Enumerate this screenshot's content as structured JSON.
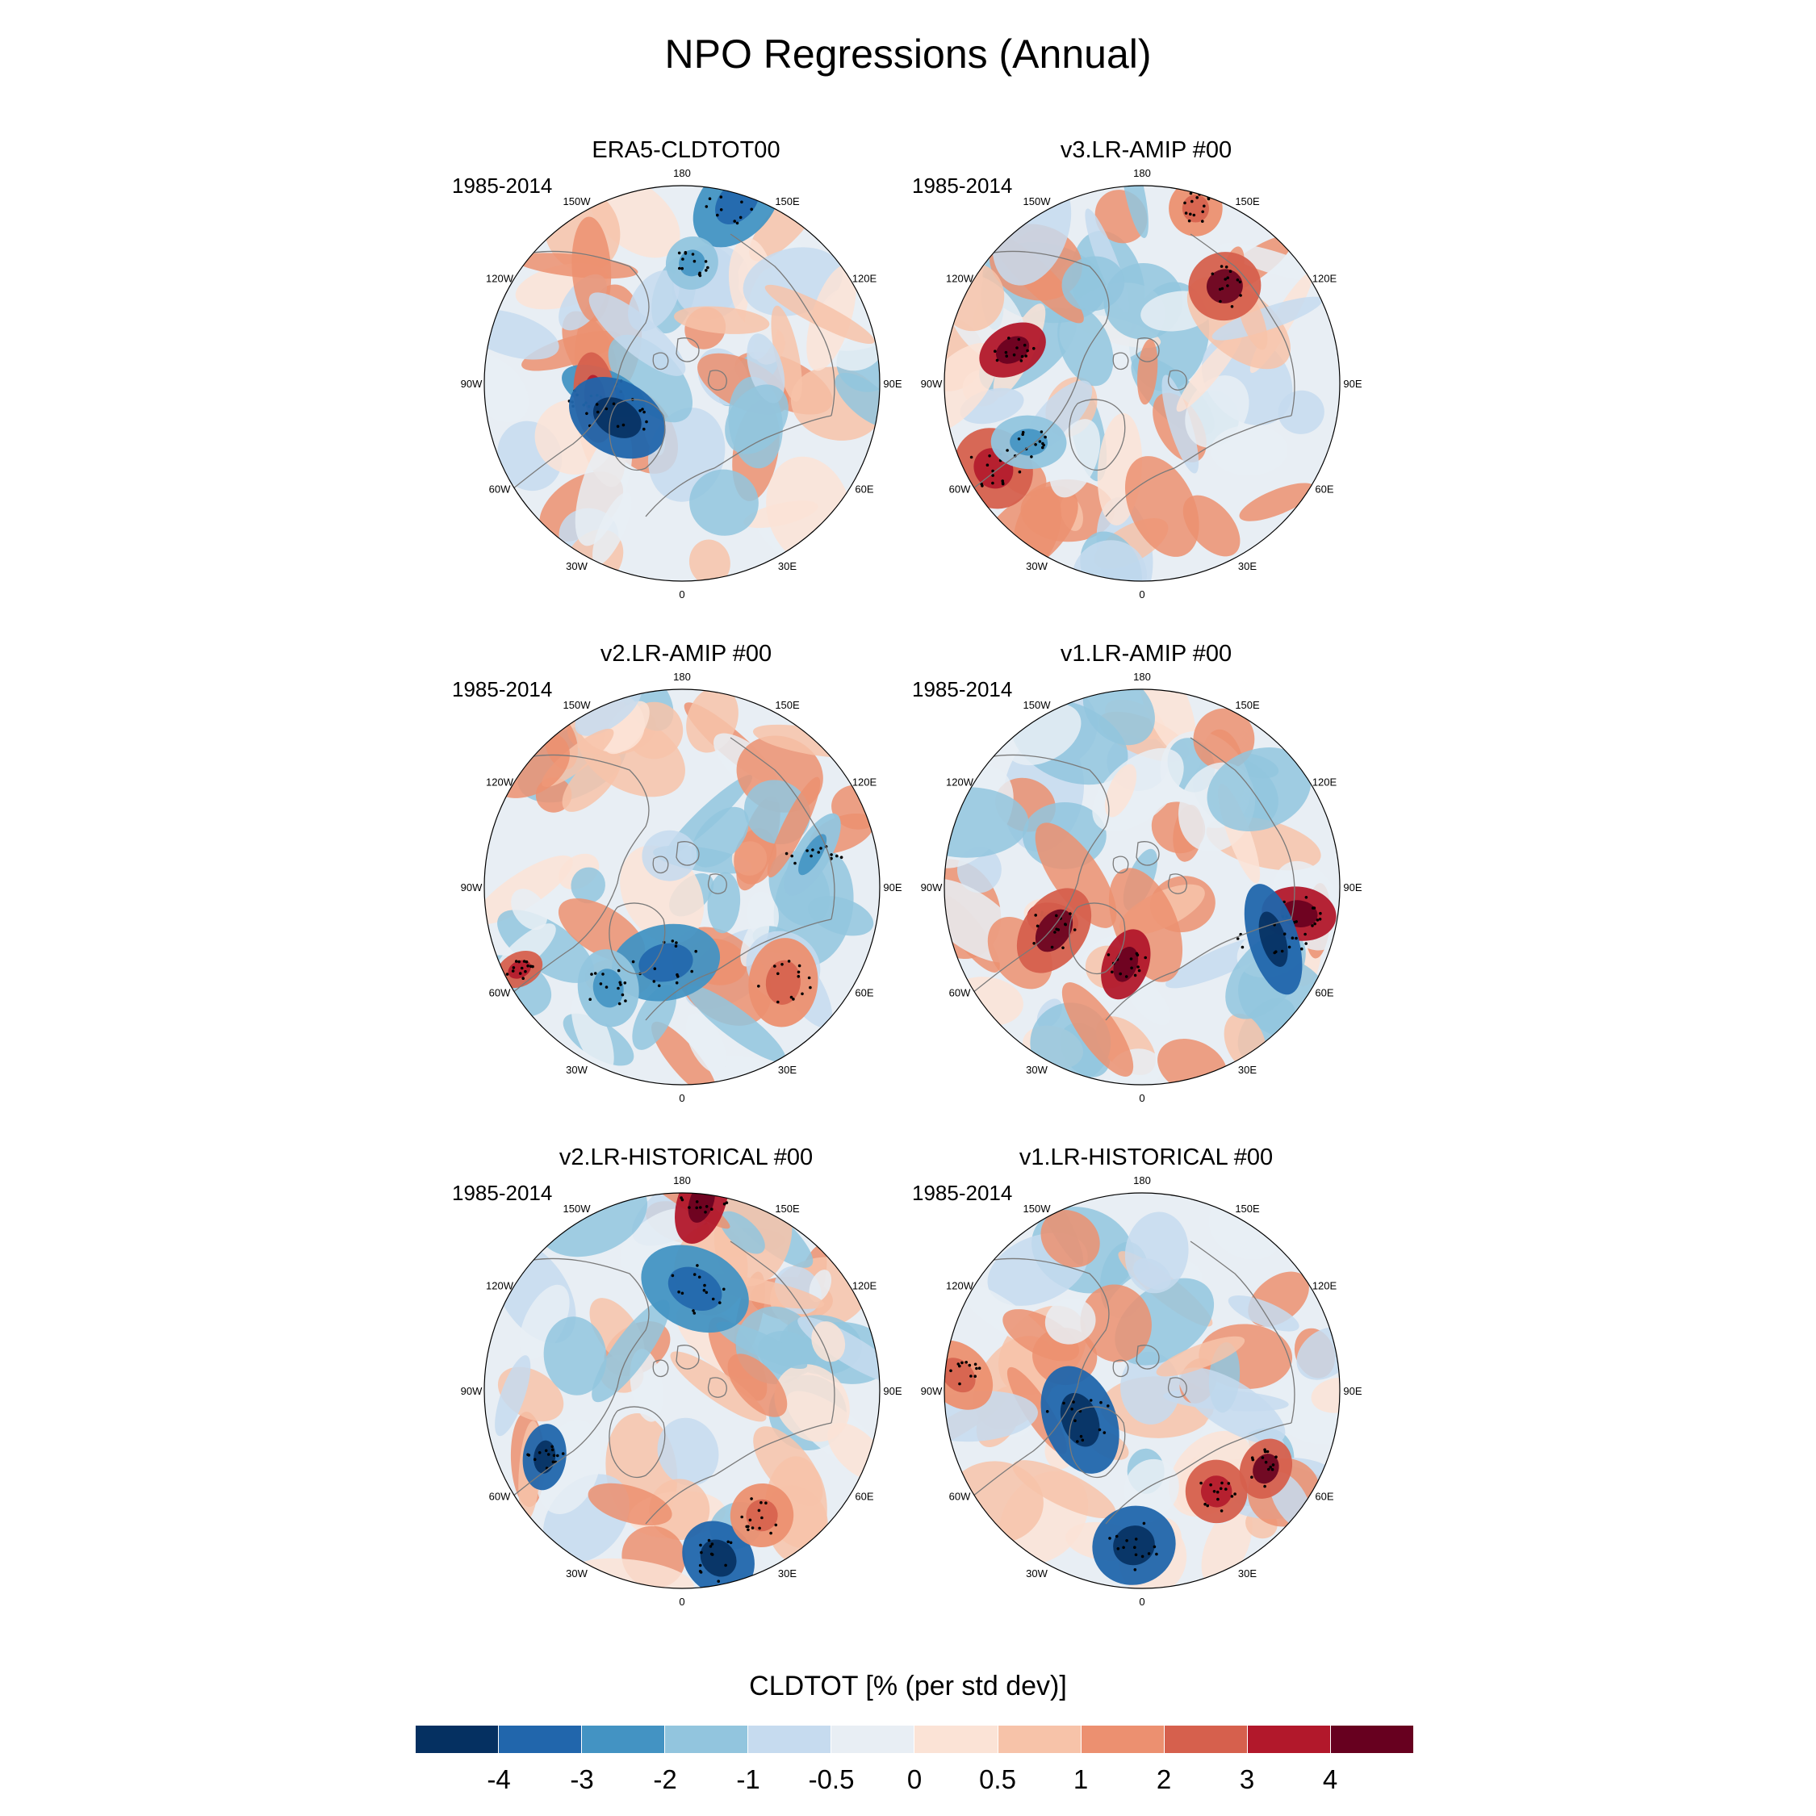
{
  "title": "NPO Regressions (Annual)",
  "panels": [
    {
      "title": "ERA5-CLDTOT00",
      "period": "1985-2014"
    },
    {
      "title": "v3.LR-AMIP  #00",
      "period": "1985-2014"
    },
    {
      "title": "v2.LR-AMIP  #00",
      "period": "1985-2014"
    },
    {
      "title": "v1.LR-AMIP  #00",
      "period": "1985-2014"
    },
    {
      "title": "v2.LR-HISTORICAL  #00",
      "period": "1985-2014"
    },
    {
      "title": "v1.LR-HISTORICAL  #00",
      "period": "1985-2014"
    }
  ],
  "longitude_labels": [
    "180",
    "150E",
    "120E",
    "90E",
    "60E",
    "30E",
    "0",
    "30W",
    "60W",
    "90W",
    "120W",
    "150W"
  ],
  "colorbar": {
    "title": "CLDTOT [% (per std dev)]",
    "labels": [
      "-4",
      "-3",
      "-2",
      "-1",
      "-0.5",
      "0",
      "0.5",
      "1",
      "2",
      "3",
      "4"
    ],
    "colors": [
      "#053061",
      "#2166ac",
      "#4393c3",
      "#92c5de",
      "#c6dbef",
      "#e8eef4",
      "#fbe3d6",
      "#f7c3a9",
      "#ec9070",
      "#d6604d",
      "#b2182b",
      "#67001f"
    ]
  },
  "map_colors": {
    "ocean_base": "#f6f0ee",
    "coast": "#7a7a7a",
    "stipple": "#000000"
  }
}
